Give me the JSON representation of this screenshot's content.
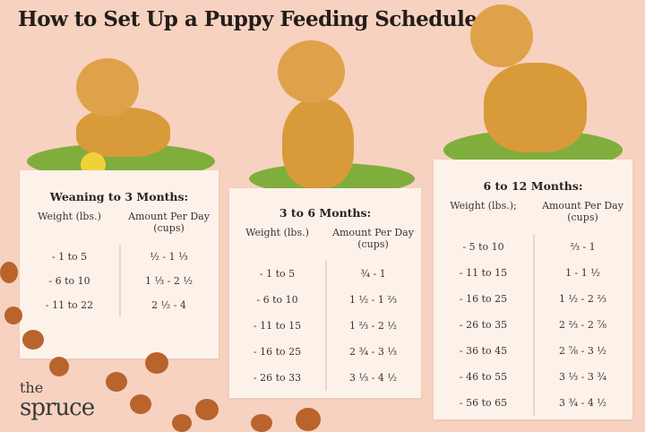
{
  "title": "How to Set Up a Puppy Feeding Schedule",
  "cards": [
    {
      "heading": "Weaning to 3 Months:",
      "col1": "Weight (lbs.)",
      "col2": "Amount Per Day (cups)",
      "rows": [
        [
          "- 1 to 5",
          "½ - 1 ⅓"
        ],
        [
          "- 6 to 10",
          "1 ⅓ - 2 ½"
        ],
        [
          "- 11 to 22",
          "2 ½ - 4"
        ]
      ]
    },
    {
      "heading": "3 to 6 Months:",
      "col1": "Weight (lbs.)",
      "col2": "Amount Per Day (cups)",
      "rows": [
        [
          "- 1 to 5",
          "¾ - 1"
        ],
        [
          "- 6 to 10",
          "1 ½ - 1 ⅔"
        ],
        [
          "- 11 to 15",
          "1 ⅔ - 2 ½"
        ],
        [
          "- 16 to 25",
          "2 ¾ - 3 ⅓"
        ],
        [
          "- 26 to 33",
          "3 ⅓ - 4 ½"
        ]
      ]
    },
    {
      "heading": "6 to 12 Months:",
      "col1": "Weight (lbs.);",
      "col2": "Amount Per Day (cups)",
      "rows": [
        [
          "- 5 to 10",
          "⅔ - 1"
        ],
        [
          "- 11 to 15",
          "1 - 1 ½"
        ],
        [
          "- 16 to 25",
          "1 ½ - 2 ⅔"
        ],
        [
          "- 26 to 35",
          "2 ⅔ - 2 ⅞"
        ],
        [
          "- 36 to 45",
          "2 ⅞ - 3 ½"
        ],
        [
          "- 46 to 55",
          "3 ⅓ - 3 ¾"
        ],
        [
          "- 56 to 65",
          "3 ¾ - 4 ½"
        ]
      ]
    }
  ],
  "logo": {
    "line1": "the",
    "line2": "spruce"
  },
  "colors": {
    "background": "#f7d2c0",
    "card": "#fdf2ea",
    "grass": "#7fae3c",
    "dog": "#d99a3a"
  }
}
